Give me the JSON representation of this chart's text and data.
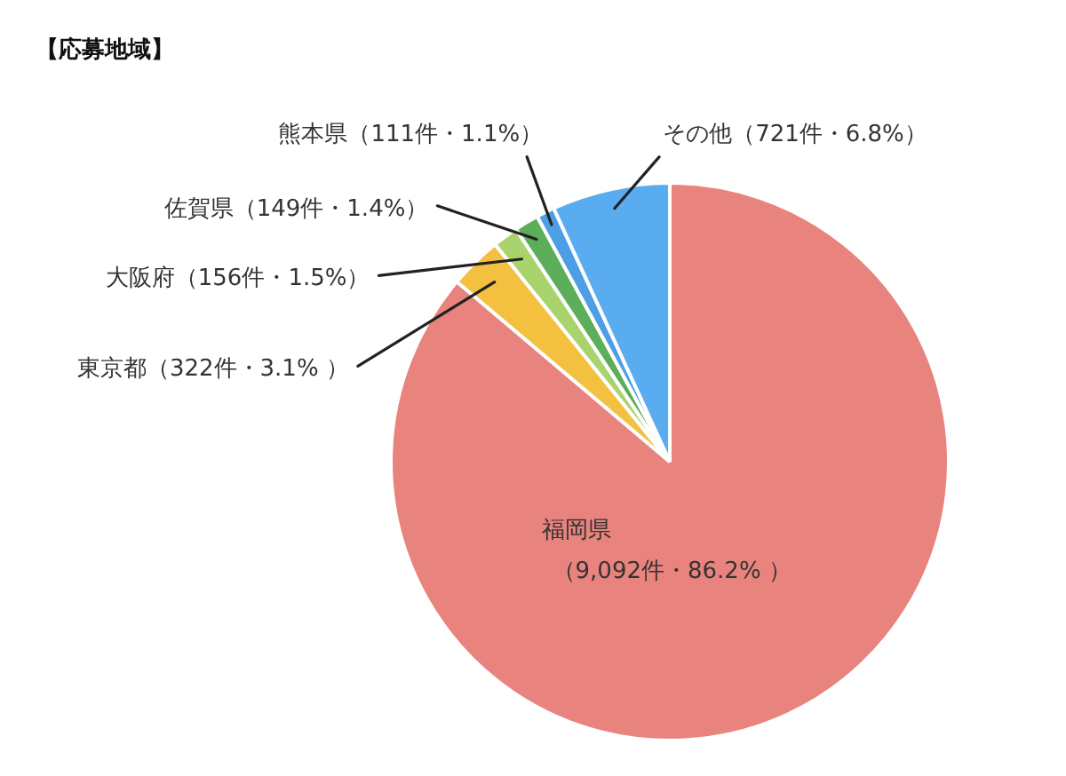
{
  "chart_data": {
    "type": "pie",
    "title": "【応募地域】",
    "categories": [
      "福岡県",
      "東京都",
      "大阪府",
      "佐賀県",
      "熊本県",
      "その他"
    ],
    "values": [
      9092,
      322,
      156,
      149,
      111,
      721
    ],
    "value_labels": [
      "（9,092件・86.2% ）",
      "（322件・3.1% ）",
      "（156件・1.5%）",
      "（149件・1.4%）",
      "（111件・1.1%）",
      "（721件・6.8%）"
    ],
    "colors": [
      "#e9837d",
      "#f3c13f",
      "#a9d36c",
      "#5cae5a",
      "#4e9ee6",
      "#5aacf0"
    ]
  }
}
